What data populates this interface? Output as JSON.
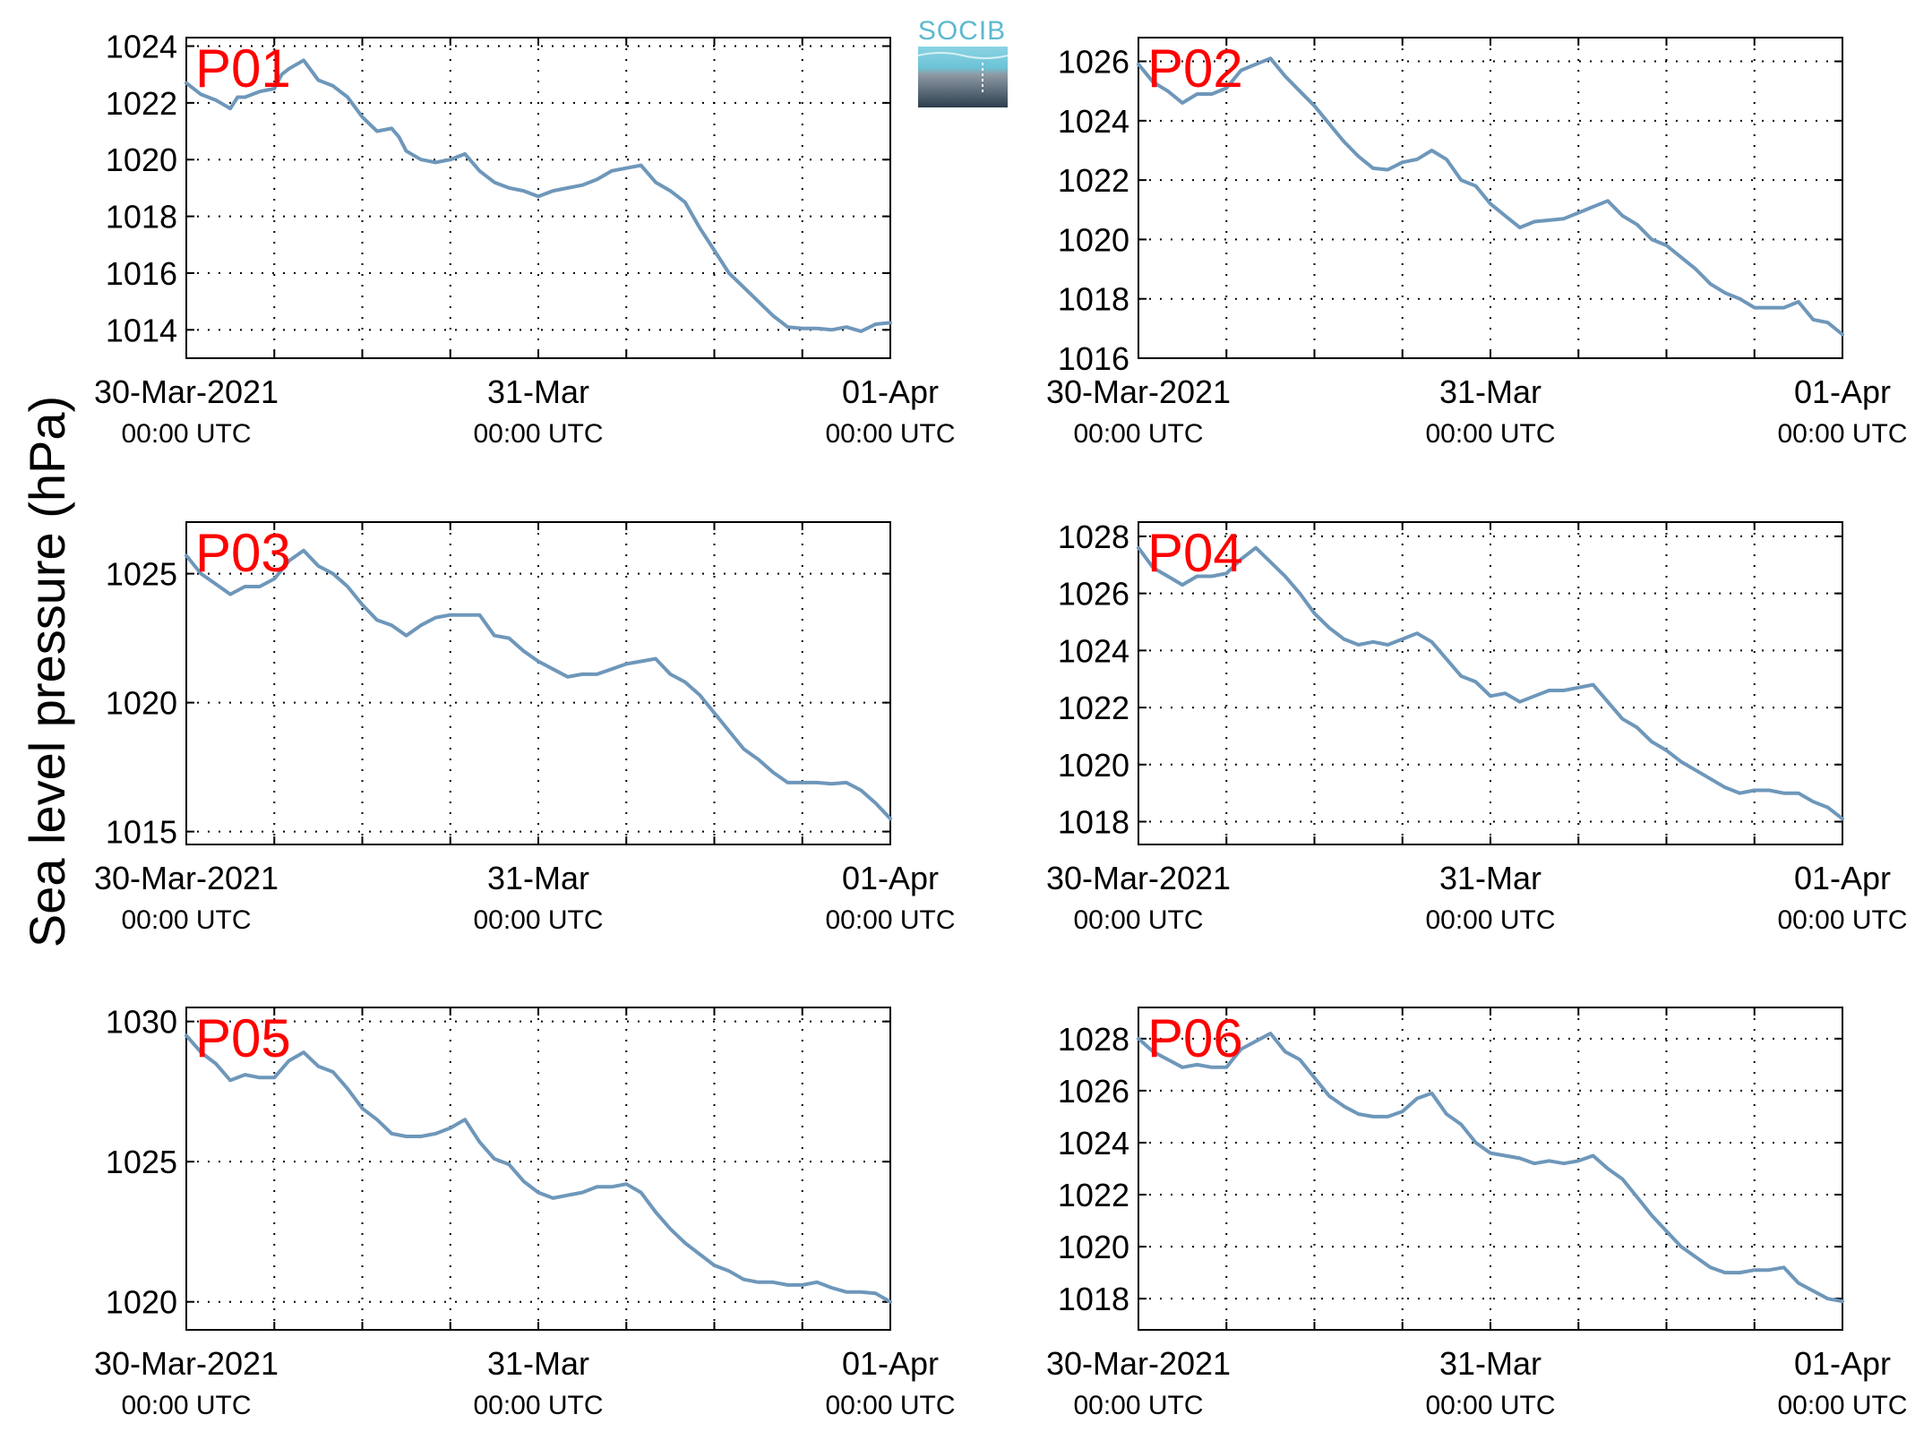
{
  "figure": {
    "ylabel": "Sea level pressure (hPa)",
    "logo_text": "SOCIB",
    "line_color": "#6e97ba",
    "label_color": "#ff0000",
    "grid": "dotted"
  },
  "chart_data": [
    {
      "type": "line",
      "panel_label": "P01",
      "x_ticks": [
        {
          "main": "30-Mar-2021",
          "sub": "00:00 UTC"
        },
        {
          "main": "31-Mar",
          "sub": "00:00 UTC"
        },
        {
          "main": "01-Apr",
          "sub": "00:00 UTC"
        }
      ],
      "xlim_hours": [
        0,
        48
      ],
      "ylim": [
        1013,
        1024.3
      ],
      "yticks": [
        1014,
        1016,
        1018,
        1020,
        1022,
        1024
      ],
      "hours": [
        0,
        1,
        2,
        3,
        3.5,
        4,
        5,
        6,
        6.5,
        7,
        8,
        9,
        10,
        11,
        12,
        13,
        14,
        14.5,
        15,
        16,
        17,
        18,
        19,
        20,
        21,
        22,
        23,
        24,
        25,
        26,
        27,
        28,
        29,
        30,
        31,
        32,
        33,
        34,
        35,
        36,
        37,
        38,
        39,
        40,
        41,
        42,
        43,
        44,
        45,
        46,
        47,
        48
      ],
      "values": [
        1022.7,
        1022.3,
        1022.1,
        1021.8,
        1022.2,
        1022.2,
        1022.4,
        1022.5,
        1023.0,
        1023.2,
        1023.5,
        1022.8,
        1022.6,
        1022.2,
        1021.5,
        1021.0,
        1021.1,
        1020.8,
        1020.3,
        1020.0,
        1019.9,
        1020.0,
        1020.2,
        1019.6,
        1019.2,
        1019.0,
        1018.9,
        1018.7,
        1018.9,
        1019.0,
        1019.1,
        1019.3,
        1019.6,
        1019.7,
        1019.8,
        1019.2,
        1018.9,
        1018.5,
        1017.6,
        1016.8,
        1016.0,
        1015.5,
        1015.0,
        1014.5,
        1014.1,
        1014.05,
        1014.05,
        1014.0,
        1014.1,
        1013.95,
        1014.2,
        1014.25
      ]
    },
    {
      "type": "line",
      "panel_label": "P02",
      "x_ticks": [
        {
          "main": "30-Mar-2021",
          "sub": "00:00 UTC"
        },
        {
          "main": "31-Mar",
          "sub": "00:00 UTC"
        },
        {
          "main": "01-Apr",
          "sub": "00:00 UTC"
        }
      ],
      "xlim_hours": [
        0,
        48
      ],
      "ylim": [
        1016,
        1026.8
      ],
      "yticks": [
        1016,
        1018,
        1020,
        1022,
        1024,
        1026
      ],
      "hours": [
        0,
        1,
        2,
        3,
        4,
        5,
        6,
        7,
        8,
        9,
        10,
        11,
        12,
        13,
        14,
        15,
        16,
        17,
        18,
        19,
        20,
        21,
        22,
        23,
        24,
        25,
        26,
        27,
        28,
        29,
        30,
        31,
        32,
        33,
        34,
        35,
        36,
        37,
        38,
        39,
        40,
        41,
        42,
        43,
        44,
        45,
        46,
        47,
        48
      ],
      "values": [
        1025.9,
        1025.3,
        1025.0,
        1024.6,
        1024.9,
        1024.9,
        1025.1,
        1025.7,
        1025.9,
        1026.1,
        1025.5,
        1025.0,
        1024.5,
        1023.9,
        1023.3,
        1022.8,
        1022.4,
        1022.35,
        1022.6,
        1022.7,
        1023.0,
        1022.7,
        1022.0,
        1021.8,
        1021.2,
        1020.8,
        1020.4,
        1020.6,
        1020.65,
        1020.7,
        1020.9,
        1021.1,
        1021.3,
        1020.8,
        1020.5,
        1020.0,
        1019.8,
        1019.4,
        1019.0,
        1018.5,
        1018.2,
        1018.0,
        1017.7,
        1017.7,
        1017.7,
        1017.9,
        1017.3,
        1017.2,
        1016.8
      ]
    },
    {
      "type": "line",
      "panel_label": "P03",
      "x_ticks": [
        {
          "main": "30-Mar-2021",
          "sub": "00:00 UTC"
        },
        {
          "main": "31-Mar",
          "sub": "00:00 UTC"
        },
        {
          "main": "01-Apr",
          "sub": "00:00 UTC"
        }
      ],
      "xlim_hours": [
        0,
        48
      ],
      "ylim": [
        1014.5,
        1027
      ],
      "yticks": [
        1015,
        1020,
        1025
      ],
      "hours": [
        0,
        1,
        2,
        3,
        4,
        5,
        6,
        7,
        8,
        9,
        10,
        11,
        12,
        13,
        14,
        15,
        16,
        17,
        18,
        19,
        20,
        21,
        22,
        23,
        24,
        25,
        26,
        27,
        28,
        29,
        30,
        31,
        32,
        33,
        34,
        35,
        36,
        37,
        38,
        39,
        40,
        41,
        42,
        43,
        44,
        45,
        46,
        47,
        48
      ],
      "values": [
        1025.7,
        1025.0,
        1024.6,
        1024.2,
        1024.5,
        1024.5,
        1024.8,
        1025.5,
        1025.9,
        1025.3,
        1025.0,
        1024.5,
        1023.8,
        1023.2,
        1023.0,
        1022.6,
        1023.0,
        1023.3,
        1023.4,
        1023.4,
        1023.4,
        1022.6,
        1022.5,
        1022.0,
        1021.6,
        1021.3,
        1021.0,
        1021.1,
        1021.1,
        1021.3,
        1021.5,
        1021.6,
        1021.7,
        1021.1,
        1020.8,
        1020.3,
        1019.6,
        1018.9,
        1018.2,
        1017.8,
        1017.3,
        1016.9,
        1016.9,
        1016.9,
        1016.85,
        1016.9,
        1016.6,
        1016.1,
        1015.5
      ]
    },
    {
      "type": "line",
      "panel_label": "P04",
      "x_ticks": [
        {
          "main": "30-Mar-2021",
          "sub": "00:00 UTC"
        },
        {
          "main": "31-Mar",
          "sub": "00:00 UTC"
        },
        {
          "main": "01-Apr",
          "sub": "00:00 UTC"
        }
      ],
      "xlim_hours": [
        0,
        48
      ],
      "ylim": [
        1017.2,
        1028.5
      ],
      "yticks": [
        1018,
        1020,
        1022,
        1024,
        1026,
        1028
      ],
      "hours": [
        0,
        1,
        2,
        3,
        4,
        5,
        6,
        7,
        8,
        9,
        10,
        11,
        12,
        13,
        14,
        15,
        16,
        17,
        18,
        19,
        20,
        21,
        22,
        23,
        24,
        25,
        26,
        27,
        28,
        29,
        30,
        31,
        32,
        33,
        34,
        35,
        36,
        37,
        38,
        39,
        40,
        41,
        42,
        43,
        44,
        45,
        46,
        47,
        48
      ],
      "values": [
        1027.6,
        1026.9,
        1026.6,
        1026.3,
        1026.6,
        1026.6,
        1026.7,
        1027.2,
        1027.6,
        1027.1,
        1026.6,
        1026.0,
        1025.3,
        1024.8,
        1024.4,
        1024.2,
        1024.3,
        1024.2,
        1024.4,
        1024.6,
        1024.3,
        1023.7,
        1023.1,
        1022.9,
        1022.4,
        1022.5,
        1022.2,
        1022.4,
        1022.6,
        1022.6,
        1022.7,
        1022.8,
        1022.2,
        1021.6,
        1021.3,
        1020.8,
        1020.5,
        1020.1,
        1019.8,
        1019.5,
        1019.2,
        1019.0,
        1019.1,
        1019.1,
        1019.0,
        1019.0,
        1018.7,
        1018.5,
        1018.1
      ]
    },
    {
      "type": "line",
      "panel_label": "P05",
      "x_ticks": [
        {
          "main": "30-Mar-2021",
          "sub": "00:00 UTC"
        },
        {
          "main": "31-Mar",
          "sub": "00:00 UTC"
        },
        {
          "main": "01-Apr",
          "sub": "00:00 UTC"
        }
      ],
      "xlim_hours": [
        0,
        48
      ],
      "ylim": [
        1019,
        1030.5
      ],
      "yticks": [
        1020,
        1025,
        1030
      ],
      "hours": [
        0,
        1,
        2,
        3,
        4,
        5,
        6,
        7,
        8,
        9,
        10,
        11,
        12,
        13,
        14,
        15,
        16,
        17,
        18,
        19,
        20,
        21,
        22,
        23,
        24,
        25,
        26,
        27,
        28,
        29,
        30,
        31,
        32,
        33,
        34,
        35,
        36,
        37,
        38,
        39,
        40,
        41,
        42,
        43,
        44,
        45,
        46,
        47,
        48
      ],
      "values": [
        1029.5,
        1028.9,
        1028.5,
        1027.9,
        1028.1,
        1028.0,
        1028.0,
        1028.6,
        1028.9,
        1028.4,
        1028.2,
        1027.6,
        1026.9,
        1026.5,
        1026.0,
        1025.9,
        1025.9,
        1026.0,
        1026.2,
        1026.5,
        1025.7,
        1025.1,
        1024.9,
        1024.3,
        1023.9,
        1023.7,
        1023.8,
        1023.9,
        1024.1,
        1024.1,
        1024.2,
        1023.9,
        1023.2,
        1022.6,
        1022.1,
        1021.7,
        1021.3,
        1021.1,
        1020.8,
        1020.7,
        1020.7,
        1020.6,
        1020.6,
        1020.7,
        1020.5,
        1020.35,
        1020.35,
        1020.3,
        1020.0
      ]
    },
    {
      "type": "line",
      "panel_label": "P06",
      "x_ticks": [
        {
          "main": "30-Mar-2021",
          "sub": "00:00 UTC"
        },
        {
          "main": "31-Mar",
          "sub": "00:00 UTC"
        },
        {
          "main": "01-Apr",
          "sub": "00:00 UTC"
        }
      ],
      "xlim_hours": [
        0,
        48
      ],
      "ylim": [
        1016.8,
        1029.2
      ],
      "yticks": [
        1018,
        1020,
        1022,
        1024,
        1026,
        1028
      ],
      "hours": [
        0,
        1,
        2,
        3,
        4,
        5,
        6,
        7,
        8,
        9,
        10,
        11,
        12,
        13,
        14,
        15,
        16,
        17,
        18,
        19,
        20,
        21,
        22,
        23,
        24,
        25,
        26,
        27,
        28,
        29,
        30,
        31,
        32,
        33,
        34,
        35,
        36,
        37,
        38,
        39,
        40,
        41,
        42,
        43,
        44,
        45,
        46,
        47,
        48
      ],
      "values": [
        1028.0,
        1027.5,
        1027.2,
        1026.9,
        1027.0,
        1026.9,
        1026.9,
        1027.6,
        1027.9,
        1028.2,
        1027.5,
        1027.2,
        1026.5,
        1025.8,
        1025.4,
        1025.1,
        1025.0,
        1025.0,
        1025.2,
        1025.7,
        1025.9,
        1025.1,
        1024.7,
        1024.0,
        1023.6,
        1023.5,
        1023.4,
        1023.2,
        1023.3,
        1023.2,
        1023.3,
        1023.5,
        1023.0,
        1022.6,
        1021.9,
        1021.2,
        1020.6,
        1020.0,
        1019.6,
        1019.2,
        1019.0,
        1019.0,
        1019.1,
        1019.1,
        1019.2,
        1018.6,
        1018.3,
        1018.0,
        1017.9
      ]
    }
  ]
}
